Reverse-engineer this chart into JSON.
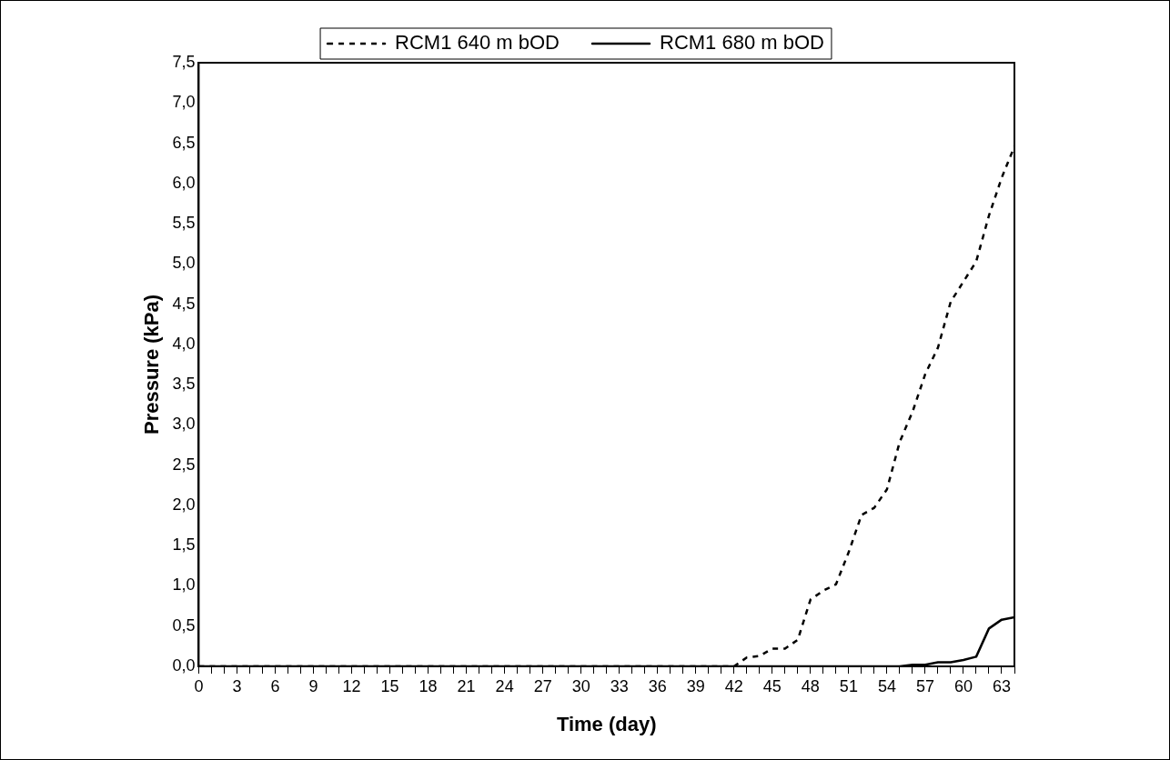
{
  "chart_data": {
    "type": "line",
    "xlabel": "Time (day)",
    "ylabel": "Pressure (kPa)",
    "x": [
      0,
      1,
      2,
      3,
      4,
      5,
      6,
      7,
      8,
      9,
      10,
      11,
      12,
      13,
      14,
      15,
      16,
      17,
      18,
      19,
      20,
      21,
      22,
      23,
      24,
      25,
      26,
      27,
      28,
      29,
      30,
      31,
      32,
      33,
      34,
      35,
      36,
      37,
      38,
      39,
      40,
      41,
      42,
      43,
      44,
      45,
      46,
      47,
      48,
      49,
      50,
      51,
      52,
      53,
      54,
      55,
      56,
      57,
      58,
      59,
      60,
      61,
      62,
      63,
      64
    ],
    "series": [
      {
        "name": "RCM1 640 m bOD",
        "color": "#000000",
        "line_style": "dashed",
        "values": [
          0,
          0,
          0,
          0,
          0,
          0,
          0,
          0,
          0,
          0,
          0,
          0,
          0,
          0,
          0,
          0,
          0,
          0,
          0,
          0,
          0,
          0,
          0,
          0,
          0,
          0,
          0,
          0,
          0,
          0,
          0,
          0,
          0,
          0,
          0,
          0,
          0,
          0,
          0,
          0,
          0,
          0,
          0,
          0.11,
          0.13,
          0.22,
          0.22,
          0.33,
          0.83,
          0.94,
          1.02,
          1.42,
          1.88,
          1.97,
          2.2,
          2.79,
          3.16,
          3.63,
          3.96,
          4.53,
          4.78,
          5.03,
          5.6,
          6.07,
          6.46
        ]
      },
      {
        "name": "RCM1 680 m bOD",
        "color": "#000000",
        "line_style": "solid",
        "values": [
          0,
          0,
          0,
          0,
          0,
          0,
          0,
          0,
          0,
          0,
          0,
          0,
          0,
          0,
          0,
          0,
          0,
          0,
          0,
          0,
          0,
          0,
          0,
          0,
          0,
          0,
          0,
          0,
          0,
          0,
          0,
          0,
          0,
          0,
          0,
          0,
          0,
          0,
          0,
          0,
          0,
          0,
          0,
          0,
          0,
          0,
          0,
          0,
          0,
          0,
          0,
          0,
          0,
          0,
          0,
          0,
          0.02,
          0.02,
          0.05,
          0.05,
          0.08,
          0.12,
          0.47,
          0.58,
          0.61
        ]
      }
    ],
    "xlim": [
      0,
      64
    ],
    "xticks": [
      0,
      {
        "value": 1,
        "label": null
      },
      {
        "value": 2,
        "label": null
      },
      3,
      {
        "value": 4,
        "label": null
      },
      {
        "value": 5,
        "label": null
      },
      6,
      {
        "value": 7,
        "label": null
      },
      {
        "value": 8,
        "label": null
      },
      9,
      {
        "value": 10,
        "label": null
      },
      {
        "value": 11,
        "label": null
      },
      12,
      {
        "value": 13,
        "label": null
      },
      {
        "value": 14,
        "label": null
      },
      15,
      {
        "value": 16,
        "label": null
      },
      {
        "value": 17,
        "label": null
      },
      18,
      {
        "value": 19,
        "label": null
      },
      {
        "value": 20,
        "label": null
      },
      21,
      {
        "value": 22,
        "label": null
      },
      {
        "value": 23,
        "label": null
      },
      24,
      {
        "value": 25,
        "label": null
      },
      {
        "value": 26,
        "label": null
      },
      27,
      {
        "value": 28,
        "label": null
      },
      {
        "value": 29,
        "label": null
      },
      30,
      {
        "value": 31,
        "label": null
      },
      {
        "value": 32,
        "label": null
      },
      33,
      {
        "value": 34,
        "label": null
      },
      {
        "value": 35,
        "label": null
      },
      36,
      {
        "value": 37,
        "label": null
      },
      {
        "value": 38,
        "label": null
      },
      39,
      {
        "value": 40,
        "label": null
      },
      {
        "value": 41,
        "label": null
      },
      42,
      {
        "value": 43,
        "label": null
      },
      {
        "value": 44,
        "label": null
      },
      45,
      {
        "value": 46,
        "label": null
      },
      {
        "value": 47,
        "label": null
      },
      48,
      {
        "value": 49,
        "label": null
      },
      {
        "value": 50,
        "label": null
      },
      51,
      {
        "value": 52,
        "label": null
      },
      {
        "value": 53,
        "label": null
      },
      54,
      {
        "value": 55,
        "label": null
      },
      {
        "value": 56,
        "label": null
      },
      57,
      {
        "value": 58,
        "label": null
      },
      {
        "value": 59,
        "label": null
      },
      60,
      {
        "value": 61,
        "label": null
      },
      {
        "value": 62,
        "label": null
      },
      63,
      {
        "value": 64,
        "label": null
      }
    ],
    "ylim": [
      0,
      7.5
    ],
    "yticks": [
      {
        "value": 0,
        "label": "0,0"
      },
      {
        "value": 0.5,
        "label": "0,5"
      },
      {
        "value": 1,
        "label": "1,0"
      },
      {
        "value": 1.5,
        "label": "1,5"
      },
      {
        "value": 2,
        "label": "2,0"
      },
      {
        "value": 2.5,
        "label": "2,5"
      },
      {
        "value": 3,
        "label": "3,0"
      },
      {
        "value": 3.5,
        "label": "3,5"
      },
      {
        "value": 4,
        "label": "4,0"
      },
      {
        "value": 4.5,
        "label": "4,5"
      },
      {
        "value": 5,
        "label": "5,0"
      },
      {
        "value": 5.5,
        "label": "5,5"
      },
      {
        "value": 6,
        "label": "6,0"
      },
      {
        "value": 6.5,
        "label": "6,5"
      },
      {
        "value": 7,
        "label": "7,0"
      },
      {
        "value": 7.5,
        "label": "7,5"
      }
    ],
    "grid": false,
    "legend": "top",
    "marker": "none"
  }
}
